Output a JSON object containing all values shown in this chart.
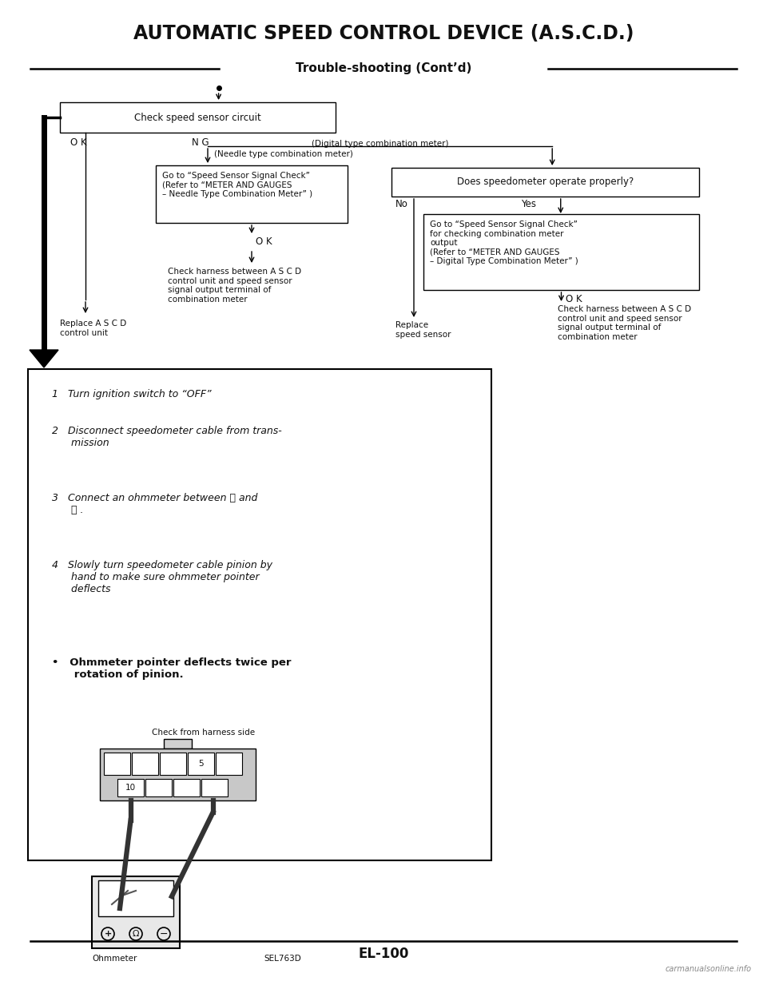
{
  "title": "AUTOMATIC SPEED CONTROL DEVICE (A.S.C.D.)",
  "subtitle": "Trouble-shooting (Cont’d)",
  "bg_color": "#ffffff",
  "text_color": "#111111",
  "page_number": "EL-100",
  "watermark": "carmanualsonline.info",
  "fig_w": 9.6,
  "fig_h": 12.33,
  "dpi": 100
}
